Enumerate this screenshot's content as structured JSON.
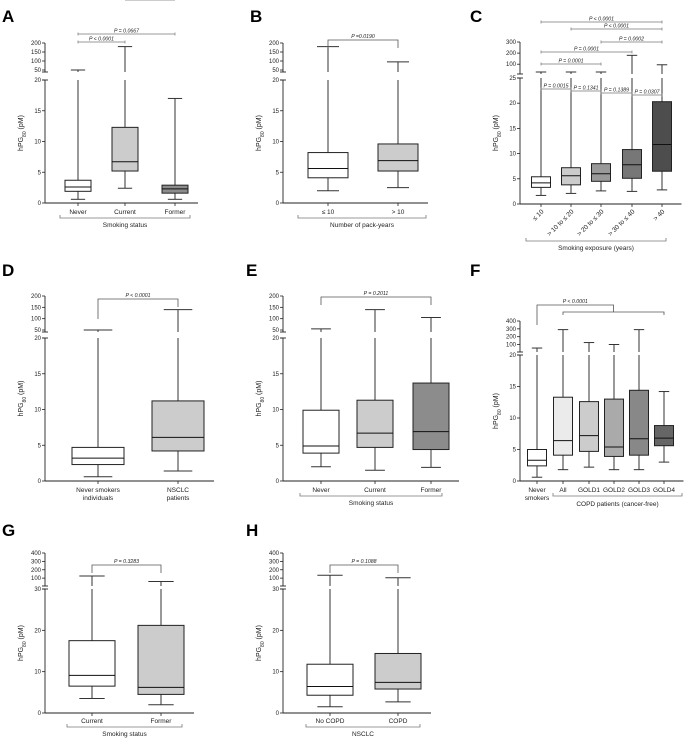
{
  "figure": {
    "y_label_prefix": "hPG",
    "y_label_sub": "80",
    "y_label_suffix": " (pM)"
  },
  "chart_data": [
    {
      "panel": "A",
      "type": "boxplot",
      "ylabel": "hPG80 (pM)",
      "xlabel": "Smoking status",
      "lower_axis": {
        "range": [
          0,
          20
        ],
        "ticks": [
          0,
          5,
          10,
          15,
          20
        ]
      },
      "upper_axis": {
        "range": [
          50,
          200
        ],
        "ticks": [
          50,
          100,
          150,
          200
        ]
      },
      "categories": [
        "Never",
        "Current",
        "Former"
      ],
      "fills": [
        "#ffffff",
        "#cccccc",
        "#8c8c8c"
      ],
      "boxes": [
        {
          "min": 0.6,
          "q1": 1.9,
          "median": 2.6,
          "q3": 3.7,
          "max": 30
        },
        {
          "min": 2.4,
          "q1": 5.2,
          "median": 6.7,
          "q3": 12.3,
          "max": 180
        },
        {
          "min": 0.6,
          "q1": 1.6,
          "median": 2.3,
          "q3": 2.9,
          "max": 17
        }
      ],
      "comparisons": [
        {
          "from": 0,
          "to": 2,
          "label": "P = 0.0667"
        },
        {
          "from": 0,
          "to": 1,
          "label": "P < 0.0001"
        },
        {
          "from": 1,
          "to": 2,
          "label": "P < 0.0001"
        }
      ]
    },
    {
      "panel": "B",
      "type": "boxplot",
      "ylabel": "hPG80 (pM)",
      "xlabel": "Number of pack-years",
      "lower_axis": {
        "range": [
          0,
          20
        ],
        "ticks": [
          0,
          5,
          10,
          15,
          20
        ]
      },
      "upper_axis": {
        "range": [
          50,
          200
        ],
        "ticks": [
          50,
          100,
          150,
          200
        ]
      },
      "categories": [
        "≤ 10",
        "> 10"
      ],
      "fills": [
        "#ffffff",
        "#cccccc"
      ],
      "boxes": [
        {
          "min": 2.0,
          "q1": 4.1,
          "median": 5.6,
          "q3": 8.2,
          "max": 180
        },
        {
          "min": 2.5,
          "q1": 5.2,
          "median": 6.9,
          "q3": 9.6,
          "max": 95
        }
      ],
      "comparisons": [
        {
          "from": 0,
          "to": 1,
          "label": "P =0.0190"
        }
      ]
    },
    {
      "panel": "C",
      "type": "boxplot",
      "ylabel": "hPG80 (pM)",
      "xlabel": "Smoking exposure (years)",
      "lower_axis": {
        "range": [
          0,
          25
        ],
        "ticks": [
          0,
          5,
          10,
          15,
          20,
          25
        ]
      },
      "upper_axis": {
        "range": [
          30,
          300
        ],
        "ticks": [
          100,
          200,
          300
        ]
      },
      "categories": [
        "≤ 10",
        "> 10 to ≤ 20",
        "> 20 to ≤ 30",
        "> 30  to ≤ 40",
        "> 40"
      ],
      "fills": [
        "#ffffff",
        "#cccccc",
        "#999999",
        "#777777",
        "#4d4d4d"
      ],
      "boxes": [
        {
          "min": 1.7,
          "q1": 3.3,
          "median": 4.2,
          "q3": 5.4,
          "max": 30
        },
        {
          "min": 2.1,
          "q1": 3.8,
          "median": 5.6,
          "q3": 7.2,
          "max": 30
        },
        {
          "min": 2.6,
          "q1": 4.5,
          "median": 6.0,
          "q3": 8.0,
          "max": 25.5
        },
        {
          "min": 2.5,
          "q1": 5.1,
          "median": 7.8,
          "q3": 10.8,
          "max": 180
        },
        {
          "min": 2.8,
          "q1": 6.5,
          "median": 11.8,
          "q3": 20.3,
          "max": 95
        }
      ],
      "comparisons": [
        {
          "from": 0,
          "to": 4,
          "label": "P < 0.0001"
        },
        {
          "from": 1,
          "to": 4,
          "label": "P < 0.0001"
        },
        {
          "from": 2,
          "to": 4,
          "label": "P = 0.0002"
        },
        {
          "from": 0,
          "to": 3,
          "label": "P = 0.0001"
        },
        {
          "from": 0,
          "to": 2,
          "label": "P = 0.0001"
        },
        {
          "from": 0,
          "to": 1,
          "label": "P = 0.0015"
        },
        {
          "from": 1,
          "to": 2,
          "label": "P = 0.1341"
        },
        {
          "from": 2,
          "to": 3,
          "label": "P = 0.1389"
        },
        {
          "from": 3,
          "to": 4,
          "label": "P = 0.0307"
        }
      ]
    },
    {
      "panel": "D",
      "type": "boxplot",
      "ylabel": "hPG80 (pM)",
      "xlabel": "",
      "lower_axis": {
        "range": [
          0,
          20
        ],
        "ticks": [
          0,
          5,
          10,
          15,
          20
        ]
      },
      "upper_axis": {
        "range": [
          50,
          200
        ],
        "ticks": [
          50,
          100,
          150,
          200
        ]
      },
      "categories": [
        "Never smokers|individuals",
        "NSCLC|patients"
      ],
      "fills": [
        "#ffffff",
        "#cccccc"
      ],
      "boxes": [
        {
          "min": 0.6,
          "q1": 2.3,
          "median": 3.2,
          "q3": 4.7,
          "max": 30
        },
        {
          "min": 1.4,
          "q1": 4.2,
          "median": 6.1,
          "q3": 11.2,
          "max": 140
        }
      ],
      "comparisons": [
        {
          "from": 0,
          "to": 1,
          "label": "P < 0.0001"
        }
      ]
    },
    {
      "panel": "E",
      "type": "boxplot",
      "ylabel": "hPG80 (pM)",
      "xlabel": "Smoking status",
      "lower_axis": {
        "range": [
          0,
          20
        ],
        "ticks": [
          0,
          5,
          10,
          15,
          20
        ]
      },
      "upper_axis": {
        "range": [
          50,
          200
        ],
        "ticks": [
          50,
          100,
          150,
          200
        ]
      },
      "categories": [
        "Never",
        "Current",
        "Former"
      ],
      "fills": [
        "#ffffff",
        "#cccccc",
        "#8c8c8c"
      ],
      "boxes": [
        {
          "min": 2.0,
          "q1": 3.9,
          "median": 4.9,
          "q3": 9.9,
          "max": 55
        },
        {
          "min": 1.5,
          "q1": 4.7,
          "median": 6.7,
          "q3": 11.3,
          "max": 140
        },
        {
          "min": 1.9,
          "q1": 4.4,
          "median": 6.9,
          "q3": 13.7,
          "max": 105
        }
      ],
      "comparisons": [
        {
          "from": 0,
          "to": 2,
          "label": "P = 0.2011"
        }
      ]
    },
    {
      "panel": "F",
      "type": "boxplot",
      "ylabel": "hPG80 (pM)",
      "xlabel": "COPD patients (cancer-free)",
      "lower_axis": {
        "range": [
          0,
          20
        ],
        "ticks": [
          0,
          5,
          10,
          15,
          20
        ]
      },
      "upper_axis": {
        "range": [
          30,
          400
        ],
        "ticks": [
          100,
          200,
          300,
          400
        ]
      },
      "categories": [
        "Never|smokers",
        "All",
        "GOLD1",
        "GOLD2",
        "GOLD3",
        "GOLD4"
      ],
      "fills": [
        "#ffffff",
        "#ebebeb",
        "#cccccc",
        "#aaaaaa",
        "#888888",
        "#666666"
      ],
      "boxes": [
        {
          "min": 0.6,
          "q1": 2.4,
          "median": 3.3,
          "q3": 5.0,
          "max": 55
        },
        {
          "min": 1.8,
          "q1": 4.1,
          "median": 6.4,
          "q3": 13.3,
          "max": 290
        },
        {
          "min": 2.2,
          "q1": 4.7,
          "median": 7.2,
          "q3": 12.6,
          "max": 125
        },
        {
          "min": 1.8,
          "q1": 3.9,
          "median": 5.4,
          "q3": 13.0,
          "max": 100
        },
        {
          "min": 1.8,
          "q1": 4.1,
          "median": 6.7,
          "q3": 14.4,
          "max": 290
        },
        {
          "min": 3.0,
          "q1": 5.6,
          "median": 6.8,
          "q3": 8.8,
          "max": 14.2
        }
      ],
      "comparisons": [
        {
          "from": 0,
          "to": "group",
          "label": "P < 0.0001"
        }
      ]
    },
    {
      "panel": "G",
      "type": "boxplot",
      "ylabel": "hPG80 (pM)",
      "xlabel": "Smoking status",
      "lower_axis": {
        "range": [
          0,
          30
        ],
        "ticks": [
          0,
          10,
          20,
          30
        ]
      },
      "upper_axis": {
        "range": [
          30,
          400
        ],
        "ticks": [
          100,
          200,
          300,
          400
        ]
      },
      "categories": [
        "Current",
        "Former"
      ],
      "fills": [
        "#ffffff",
        "#cccccc"
      ],
      "boxes": [
        {
          "min": 3.5,
          "q1": 6.5,
          "median": 9.1,
          "q3": 17.5,
          "max": 125
        },
        {
          "min": 2.0,
          "q1": 4.5,
          "median": 6.2,
          "q3": 21.2,
          "max": 60
        }
      ],
      "comparisons": [
        {
          "from": 0,
          "to": 1,
          "label": "P = 0.3283"
        }
      ]
    },
    {
      "panel": "H",
      "type": "boxplot",
      "ylabel": "hPG80 (pM)",
      "xlabel": "NSCLC",
      "lower_axis": {
        "range": [
          0,
          30
        ],
        "ticks": [
          0,
          10,
          20,
          30
        ]
      },
      "upper_axis": {
        "range": [
          30,
          400
        ],
        "ticks": [
          100,
          200,
          300,
          400
        ]
      },
      "categories": [
        "No COPD",
        "COPD"
      ],
      "fills": [
        "#ffffff",
        "#cccccc"
      ],
      "boxes": [
        {
          "min": 1.5,
          "q1": 4.3,
          "median": 6.4,
          "q3": 11.8,
          "max": 135
        },
        {
          "min": 2.7,
          "q1": 5.8,
          "median": 7.4,
          "q3": 14.4,
          "max": 105
        }
      ],
      "comparisons": [
        {
          "from": 0,
          "to": 1,
          "label": "P = 0.1088"
        }
      ]
    }
  ]
}
